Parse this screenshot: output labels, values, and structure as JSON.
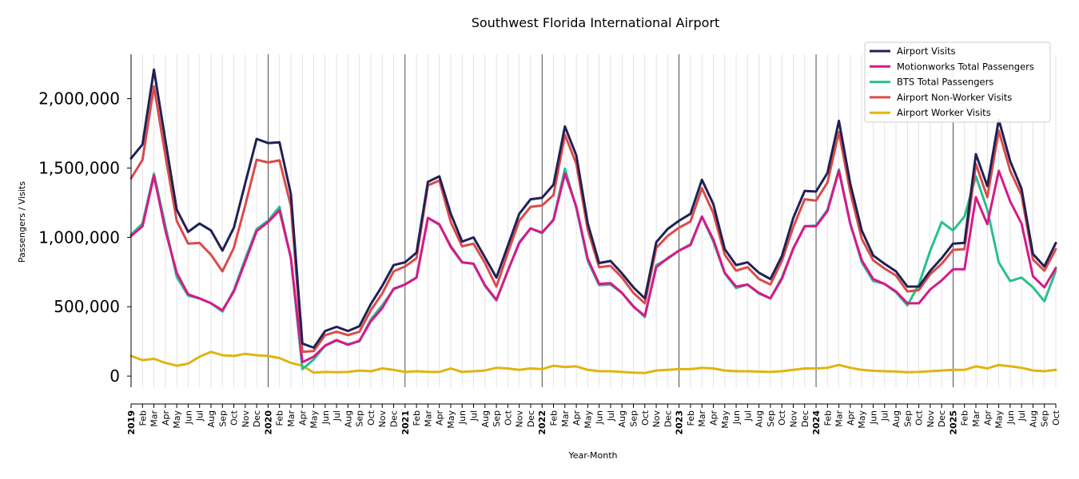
{
  "chart_data": {
    "type": "line",
    "title": "Southwest Florida International Airport",
    "xlabel": "Year-Month",
    "ylabel": "Passengers / Visits",
    "ylim": [
      -80000,
      2320000
    ],
    "yticks": [
      0,
      500000,
      1000000,
      1500000,
      2000000
    ],
    "ytick_labels": [
      "0",
      "500,000",
      "1,000,000",
      "1,500,000",
      "2,000,000"
    ],
    "grid": "vertical lines at each month; darker at each January",
    "legend_position": "top-right",
    "x": [
      "2019",
      "Feb",
      "Mar",
      "Apr",
      "May",
      "Jun",
      "Jul",
      "Aug",
      "Sep",
      "Oct",
      "Nov",
      "Dec",
      "2020",
      "Feb",
      "Mar",
      "Apr",
      "May",
      "Jun",
      "Jul",
      "Aug",
      "Sep",
      "Oct",
      "Nov",
      "Dec",
      "2021",
      "Feb",
      "Mar",
      "Apr",
      "May",
      "Jun",
      "Jul",
      "Aug",
      "Sep",
      "Oct",
      "Nov",
      "Dec",
      "2022",
      "Feb",
      "Mar",
      "Apr",
      "May",
      "Jun",
      "Jul",
      "Aug",
      "Sep",
      "Oct",
      "Nov",
      "Dec",
      "2023",
      "Feb",
      "Mar",
      "Apr",
      "May",
      "Jun",
      "Jul",
      "Aug",
      "Sep",
      "Oct",
      "Nov",
      "Dec",
      "2024",
      "Feb",
      "Mar",
      "Apr",
      "May",
      "Jun",
      "Jul",
      "Aug",
      "Sep",
      "Oct",
      "Nov",
      "Dec",
      "2025",
      "Feb",
      "Mar",
      "Apr",
      "May",
      "Jun",
      "Jul",
      "Aug",
      "Sep",
      "Oct"
    ],
    "year_ticks": [
      "2019",
      "2020",
      "2021",
      "2022",
      "2023",
      "2024",
      "2025"
    ],
    "series": [
      {
        "name": "Airport Visits",
        "color": "#1f2156",
        "values": [
          1570000,
          1670000,
          2210000,
          1700000,
          1200000,
          1040000,
          1100000,
          1050000,
          905000,
          1070000,
          1390000,
          1710000,
          1680000,
          1685000,
          1310000,
          235000,
          205000,
          325000,
          355000,
          325000,
          360000,
          520000,
          650000,
          800000,
          820000,
          890000,
          1400000,
          1440000,
          1170000,
          970000,
          1000000,
          855000,
          710000,
          940000,
          1170000,
          1275000,
          1285000,
          1380000,
          1800000,
          1590000,
          1100000,
          815000,
          830000,
          740000,
          640000,
          560000,
          965000,
          1060000,
          1120000,
          1170000,
          1415000,
          1240000,
          915000,
          800000,
          820000,
          745000,
          700000,
          865000,
          1140000,
          1335000,
          1330000,
          1465000,
          1840000,
          1385000,
          1050000,
          870000,
          810000,
          755000,
          645000,
          645000,
          760000,
          850000,
          955000,
          960000,
          1600000,
          1370000,
          1850000,
          1550000,
          1350000,
          880000,
          790000,
          960000
        ]
      },
      {
        "name": "Motionworks Total Passengers",
        "color": "#d6198c",
        "values": [
          1010000,
          1080000,
          1445000,
          1050000,
          745000,
          590000,
          560000,
          525000,
          475000,
          610000,
          825000,
          1045000,
          1110000,
          1195000,
          850000,
          100000,
          140000,
          220000,
          260000,
          225000,
          255000,
          395000,
          490000,
          630000,
          660000,
          710000,
          1140000,
          1095000,
          930000,
          820000,
          810000,
          655000,
          550000,
          760000,
          960000,
          1065000,
          1035000,
          1125000,
          1460000,
          1220000,
          845000,
          665000,
          670000,
          600000,
          500000,
          435000,
          785000,
          850000,
          905000,
          945000,
          1150000,
          985000,
          745000,
          645000,
          660000,
          600000,
          560000,
          700000,
          920000,
          1080000,
          1080000,
          1190000,
          1480000,
          1095000,
          835000,
          700000,
          665000,
          610000,
          525000,
          525000,
          625000,
          690000,
          770000,
          770000,
          1290000,
          1095000,
          1480000,
          1260000,
          1100000,
          720000,
          640000,
          780000
        ]
      },
      {
        "name": "BTS Total Passengers",
        "color": "#28c08e",
        "values": [
          1020000,
          1100000,
          1460000,
          1085000,
          715000,
          580000,
          560000,
          525000,
          465000,
          620000,
          845000,
          1060000,
          1120000,
          1220000,
          850000,
          50000,
          120000,
          220000,
          255000,
          230000,
          250000,
          410000,
          510000,
          625000,
          660000,
          710000,
          1140000,
          1090000,
          940000,
          820000,
          810000,
          650000,
          545000,
          760000,
          965000,
          1065000,
          1030000,
          1130000,
          1495000,
          1210000,
          830000,
          655000,
          660000,
          600000,
          505000,
          425000,
          800000,
          845000,
          905000,
          950000,
          1150000,
          970000,
          740000,
          635000,
          660000,
          595000,
          560000,
          710000,
          920000,
          1080000,
          1085000,
          1200000,
          1490000,
          1100000,
          820000,
          685000,
          665000,
          605000,
          510000,
          660000,
          905000,
          1110000,
          1050000,
          1150000,
          1440000,
          1200000,
          820000,
          685000,
          710000,
          640000,
          540000,
          760000
        ]
      },
      {
        "name": "Airport Non-Worker Visits",
        "color": "#dc4a4a",
        "values": [
          1425000,
          1560000,
          2090000,
          1590000,
          1120000,
          955000,
          960000,
          875000,
          755000,
          925000,
          1230000,
          1560000,
          1540000,
          1555000,
          1225000,
          175000,
          180000,
          295000,
          320000,
          295000,
          320000,
          475000,
          595000,
          755000,
          790000,
          850000,
          1375000,
          1410000,
          1110000,
          935000,
          955000,
          815000,
          645000,
          890000,
          1120000,
          1220000,
          1230000,
          1305000,
          1740000,
          1530000,
          1055000,
          785000,
          795000,
          710000,
          600000,
          525000,
          925000,
          1010000,
          1070000,
          1115000,
          1355000,
          1175000,
          875000,
          760000,
          785000,
          700000,
          660000,
          830000,
          1075000,
          1275000,
          1265000,
          1395000,
          1760000,
          1325000,
          990000,
          835000,
          775000,
          725000,
          610000,
          620000,
          735000,
          810000,
          910000,
          915000,
          1530000,
          1290000,
          1770000,
          1480000,
          1305000,
          840000,
          760000,
          915000
        ]
      },
      {
        "name": "Airport Worker Visits",
        "color": "#e0b40e",
        "values": [
          145000,
          115000,
          125000,
          95000,
          75000,
          90000,
          140000,
          175000,
          150000,
          145000,
          160000,
          150000,
          145000,
          130000,
          95000,
          75000,
          25000,
          30000,
          28000,
          30000,
          40000,
          35000,
          55000,
          45000,
          30000,
          35000,
          30000,
          30000,
          55000,
          30000,
          35000,
          40000,
          60000,
          55000,
          45000,
          55000,
          50000,
          75000,
          65000,
          70000,
          45000,
          35000,
          35000,
          30000,
          25000,
          22000,
          40000,
          45000,
          50000,
          50000,
          60000,
          55000,
          40000,
          35000,
          35000,
          32000,
          30000,
          35000,
          45000,
          55000,
          55000,
          60000,
          80000,
          60000,
          45000,
          38000,
          35000,
          33000,
          28000,
          30000,
          35000,
          40000,
          45000,
          45000,
          70000,
          55000,
          80000,
          70000,
          60000,
          40000,
          35000,
          45000
        ]
      }
    ]
  }
}
